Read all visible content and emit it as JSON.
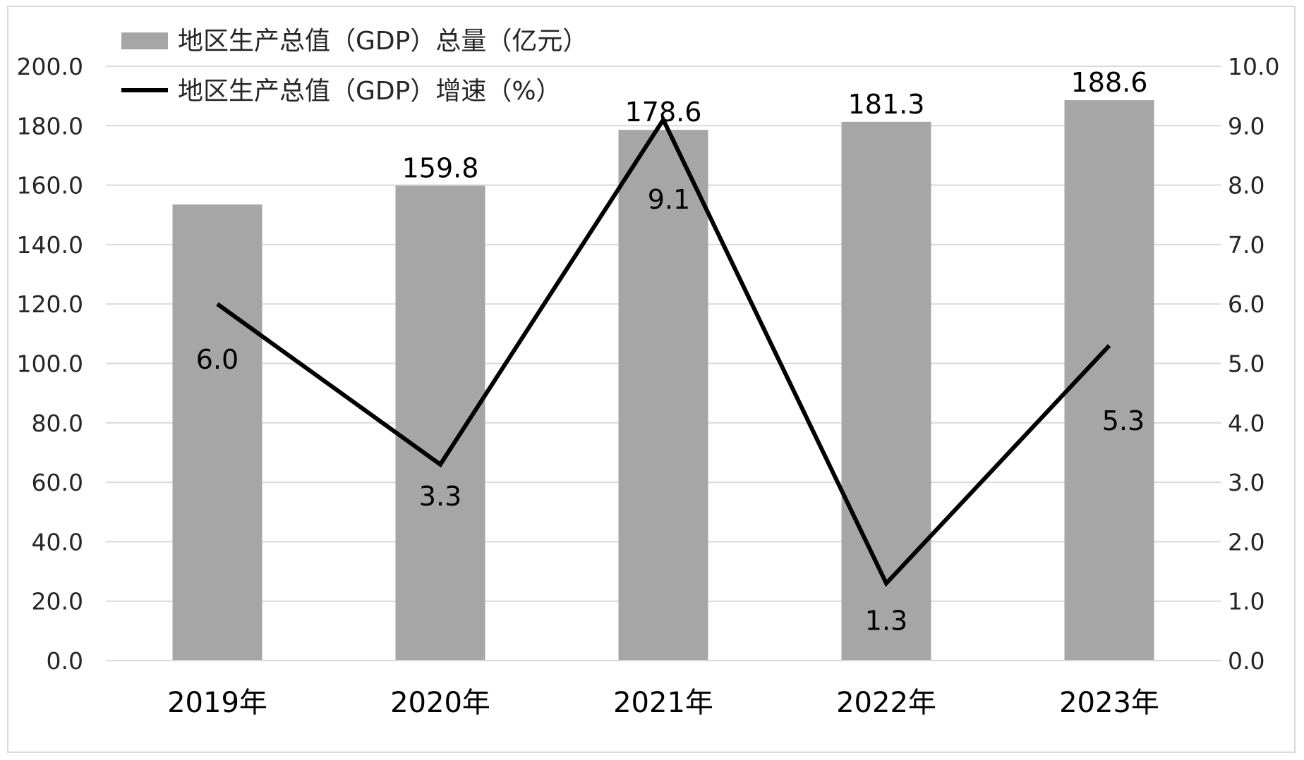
{
  "chart_data": {
    "type": "bar",
    "categories": [
      "2019年",
      "2020年",
      "2021年",
      "2022年",
      "2023年"
    ],
    "series": [
      {
        "name": "地区生产总值（GDP）总量（亿元）",
        "type": "bar",
        "axis": "left",
        "values": [
          153.5,
          159.8,
          178.6,
          181.3,
          188.6
        ],
        "labels": [
          "",
          "159.8",
          "178.6",
          "181.3",
          "188.6"
        ],
        "color": "#a6a6a6"
      },
      {
        "name": "地区生产总值（GDP）增速（%）",
        "type": "line",
        "axis": "right",
        "values": [
          6.0,
          3.3,
          9.1,
          1.3,
          5.3
        ],
        "labels": [
          "6.0",
          "3.3",
          "9.1",
          "1.3",
          "5.3"
        ],
        "color": "#000000"
      }
    ],
    "y_left": {
      "min": 0,
      "max": 200,
      "step": 20,
      "ticks": [
        "0.0",
        "20.0",
        "40.0",
        "60.0",
        "80.0",
        "100.0",
        "120.0",
        "140.0",
        "160.0",
        "180.0",
        "200.0"
      ]
    },
    "y_right": {
      "min": 0,
      "max": 10,
      "step": 1,
      "ticks": [
        "0.0",
        "1.0",
        "2.0",
        "3.0",
        "4.0",
        "5.0",
        "6.0",
        "7.0",
        "8.0",
        "9.0",
        "10.0"
      ]
    },
    "grid": true,
    "legend_position": "top-left",
    "gridline_color": "#d9d9d9"
  }
}
